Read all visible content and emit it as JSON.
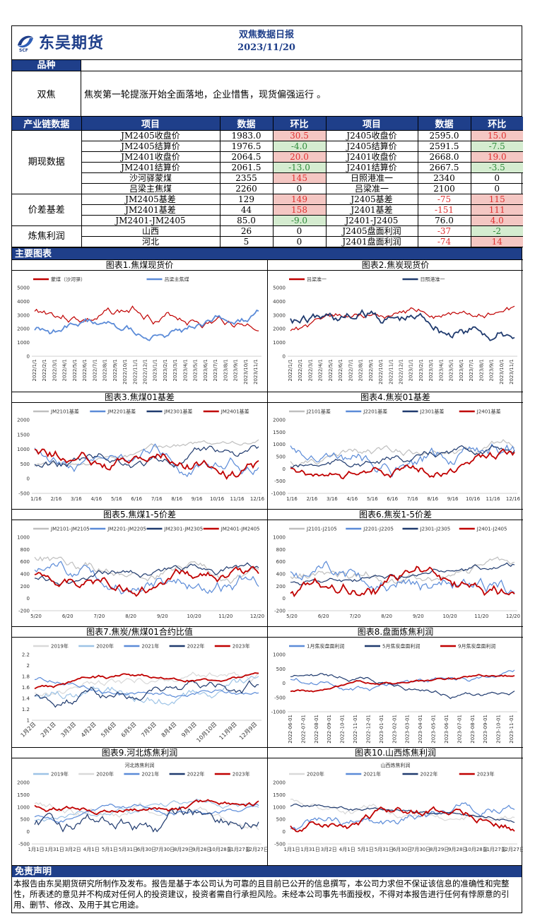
{
  "header": {
    "logo_text": "东吴期货",
    "title": "双焦数据日报",
    "date": "2023/11/20"
  },
  "variety": {
    "label": "品种",
    "name": "双焦",
    "comment": "焦炭第一轮提涨开始全面落地，企业惜售，现货偏强运行 。"
  },
  "table": {
    "headers": [
      "产业链数据",
      "项目",
      "数据",
      "环比",
      "项目",
      "数据",
      "环比"
    ],
    "groups": [
      {
        "name": "期现数据",
        "rows": [
          [
            "JM2405收盘价",
            "1983.0",
            "30.5",
            "pos",
            "J2405收盘价",
            "2595.0",
            "15.0",
            "pos"
          ],
          [
            "JM2405结算价",
            "1976.5",
            "-4.0",
            "neg",
            "J2405结算价",
            "2591.5",
            "-7.5",
            "neg"
          ],
          [
            "JM2401收盘价",
            "2064.5",
            "20.0",
            "pos",
            "J2401收盘价",
            "2668.0",
            "19.0",
            "pos"
          ],
          [
            "JM2401结算价",
            "2061.5",
            "-13.0",
            "neg",
            "J2401结算价",
            "2667.5",
            "-3.5",
            "neg"
          ],
          [
            "沙河驿蒙煤",
            "2355",
            "145",
            "pos",
            "日照港准一",
            "2340",
            "0",
            ""
          ],
          [
            "吕梁主焦煤",
            "2260",
            "0",
            "",
            "吕梁准一",
            "2100",
            "0",
            ""
          ]
        ]
      },
      {
        "name": "价差基差",
        "rows": [
          [
            "JM2405基差",
            "129",
            "149",
            "pos",
            "J2405基差",
            "-75",
            "115",
            "pos"
          ],
          [
            "JM2401基差",
            "44",
            "158",
            "pos",
            "J2401基差",
            "-151",
            "111",
            "pos"
          ],
          [
            "JM2401-JM2405",
            "85.0",
            "-9.0",
            "neg",
            "J2401-J2405",
            "76.0",
            "4.0",
            "pos"
          ]
        ]
      },
      {
        "name": "炼焦利润",
        "rows": [
          [
            "山西",
            "26",
            "0",
            "",
            "J2405盘面利润",
            "-37",
            "-2",
            "neg"
          ],
          [
            "河北",
            "5",
            "0",
            "",
            "J2401盘面利润",
            "-74",
            "14",
            "pos"
          ]
        ]
      }
    ]
  },
  "section_title": "主要图表",
  "charts": [
    {
      "title": "图表1.焦煤现货价",
      "legend": [
        "蒙煤（沙河驿）",
        "吕梁主焦煤"
      ],
      "colors": [
        "#c00000",
        "#5b8bd8"
      ],
      "yticks": [
        "5000",
        "4000",
        "3000",
        "2000",
        "1000",
        "0"
      ],
      "xticks": [
        "2022/1/1",
        "2022/2/1",
        "2022/3/1",
        "2022/4/1",
        "2022/5/1",
        "2022/6/1",
        "2022/7/1",
        "2022/8/1",
        "2022/9/1",
        "2022/10/1",
        "2022/11/1",
        "2022/12/1",
        "2023/1/1",
        "2023/2/1",
        "2023/3/1",
        "2023/4/1",
        "2023/5/1",
        "2023/6/1",
        "2023/7/1",
        "2023/8/1",
        "2023/9/1",
        "2023/10/1",
        "2023/11/1"
      ]
    },
    {
      "title": "图表2.焦炭现货价",
      "legend": [
        "吕梁准一",
        "日照港准一"
      ],
      "colors": [
        "#c00000",
        "#1f3a6e"
      ],
      "yticks": [
        "5000",
        "4000",
        "3000",
        "2000",
        "1000",
        "0"
      ],
      "xticks": [
        "2022/1/1",
        "2022/2/1",
        "2022/3/1",
        "2022/4/1",
        "2022/5/1",
        "2022/6/1",
        "2022/7/1",
        "2022/8/1",
        "2022/9/1",
        "2022/10/1",
        "2022/11/1",
        "2022/12/1",
        "2023/1/1",
        "2023/2/1",
        "2023/3/1",
        "2023/4/1",
        "2023/5/1",
        "2023/6/1",
        "2023/7/1",
        "2023/8/1",
        "2023/9/1",
        "2023/10/1",
        "2023/11/1"
      ]
    },
    {
      "title": "图表3.焦煤01基差",
      "legend": [
        "JM2101基差",
        "JM2201基差",
        "JM2301基差",
        "JM2401基差"
      ],
      "colors": [
        "#bfbfbf",
        "#5b8bd8",
        "#1f3a6e",
        "#c00000"
      ],
      "yticks": [
        "2000",
        "1500",
        "1000",
        "500",
        "0",
        "-500"
      ],
      "xticks": [
        "1/16",
        "2/16",
        "3/16",
        "4/16",
        "5/16",
        "6/16",
        "7/16",
        "8/16",
        "9/16",
        "10/16",
        "11/16",
        "12/16"
      ]
    },
    {
      "title": "图表4.焦炭01基差",
      "legend": [
        "J2101基差",
        "J2201基差",
        "J2301基差",
        "J2401基差"
      ],
      "colors": [
        "#bfbfbf",
        "#5b8bd8",
        "#1f3a6e",
        "#c00000"
      ],
      "yticks": [
        "2000",
        "1500",
        "1000",
        "500",
        "0",
        "-500",
        "-1000"
      ],
      "xticks": [
        "1/16",
        "2/16",
        "3/16",
        "4/16",
        "5/16",
        "6/16",
        "7/16",
        "8/16",
        "9/16",
        "10/16",
        "11/16",
        "12/16"
      ]
    },
    {
      "title": "图表5.焦煤1-5价差",
      "legend": [
        "JM2101-JM2105",
        "JM2201-JM2205",
        "JM2301-JM2305",
        "JM2401-JM2405"
      ],
      "colors": [
        "#bfbfbf",
        "#5b8bd8",
        "#1f3a6e",
        "#c00000"
      ],
      "yticks": [
        "1000",
        "800",
        "600",
        "400",
        "200",
        "0",
        "-200"
      ],
      "xticks": [
        "5/20",
        "6/20",
        "7/20",
        "8/20",
        "9/20",
        "10/20",
        "11/20",
        "12/20"
      ]
    },
    {
      "title": "图表6.焦炭1-5价差",
      "legend": [
        "J2101-J2105",
        "J2201-J2205",
        "J2301-J2305",
        "J2401-J2405"
      ],
      "colors": [
        "#bfbfbf",
        "#5b8bd8",
        "#1f3a6e",
        "#c00000"
      ],
      "yticks": [
        "1000",
        "800",
        "600",
        "400",
        "200",
        "0",
        "-200"
      ],
      "xticks": [
        "5/20",
        "6/20",
        "7/20",
        "8/20",
        "9/20",
        "10/20",
        "11/20",
        "12/20"
      ]
    },
    {
      "title": "图表7.焦炭/焦煤01合约比值",
      "legend": [
        "2019年",
        "2020年",
        "2021年",
        "2022年",
        "2023年"
      ],
      "colors": [
        "#d9d9d9",
        "#9dc3e6",
        "#5b8bd8",
        "#1f3a6e",
        "#c00000"
      ],
      "yticks": [
        "2.2",
        "2",
        "1.8",
        "1.6",
        "1.4",
        "1.2",
        "1"
      ],
      "xticks": [
        "1月2日",
        "2月1日",
        "3月3日",
        "4月2日",
        "5月6日",
        "6月5日",
        "7月5日",
        "8月4日",
        "9月3日",
        "10月10日",
        "11月9日",
        "12月9日"
      ]
    },
    {
      "title": "图表8.盘面炼焦利润",
      "legend": [
        "1月焦炭盘面利润",
        "5月焦炭盘面利润",
        "9月焦炭盘面利润"
      ],
      "colors": [
        "#5b8bd8",
        "#1f3a6e",
        "#c00000"
      ],
      "yticks": [
        "1000",
        "500",
        "0",
        "-500",
        "-1000"
      ],
      "xticks": [
        "2022-06-01",
        "2022-07-01",
        "2022-08-01",
        "2022-09-01",
        "2022-10-01",
        "2022-11-01",
        "2022-12-01",
        "2023-01-01",
        "2023-02-01",
        "2023-03-01",
        "2023-04-01",
        "2023-05-01",
        "2023-06-01",
        "2023-07-01",
        "2023-08-01",
        "2023-09-01",
        "2023-10-01",
        "2023-11-01"
      ]
    },
    {
      "title": "图表9.河北炼焦利润",
      "subtitle": "河北炼焦利润",
      "legend": [
        "2019年",
        "2020年",
        "2021年",
        "2022年",
        "2023年"
      ],
      "colors": [
        "#9dc3e6",
        "#d9d9d9",
        "#5b8bd8",
        "#1f3a6e",
        "#c00000"
      ],
      "yticks": [
        "2000",
        "1500",
        "1000",
        "500",
        "0",
        "-500"
      ],
      "xticks": [
        "1月1日",
        "1月31日",
        "3月2日",
        "4月1日",
        "5月1日",
        "5月31日",
        "6月30日",
        "7月30日",
        "8月29日",
        "9月28日",
        "10月28日",
        "11月27日",
        "12月27日"
      ]
    },
    {
      "title": "图表10.山西炼焦利润",
      "subtitle": "山西炼焦利润",
      "legend": [
        "2020年",
        "2021年",
        "2022年",
        "2023年"
      ],
      "colors": [
        "#d9d9d9",
        "#5b8bd8",
        "#1f3a6e",
        "#c00000"
      ],
      "yticks": [
        "2000",
        "1500",
        "1000",
        "500",
        "0",
        "-500"
      ],
      "xticks": [
        "1月1日",
        "1月31日",
        "3月2日",
        "4月1日",
        "5月1日",
        "5月31日",
        "6月30日",
        "7月30日",
        "8月29日",
        "9月28日",
        "10月28日",
        "11月27日",
        "12月27日"
      ]
    }
  ],
  "disclaimer": {
    "title": "免责声明",
    "text": "本报告由东吴期货研究所制作及发布。报告是基于本公司认为可靠的且目前已公开的信息撰写，本公司力求但不保证该信息的准确性和完整性，所表述的意见并不构成对任何人的投资建议，投资者需自行承担风险。未经本公司事先书面授权，不得对本报告进行任何有悖原意的引用、删节、修改、及用于其它用途。"
  }
}
